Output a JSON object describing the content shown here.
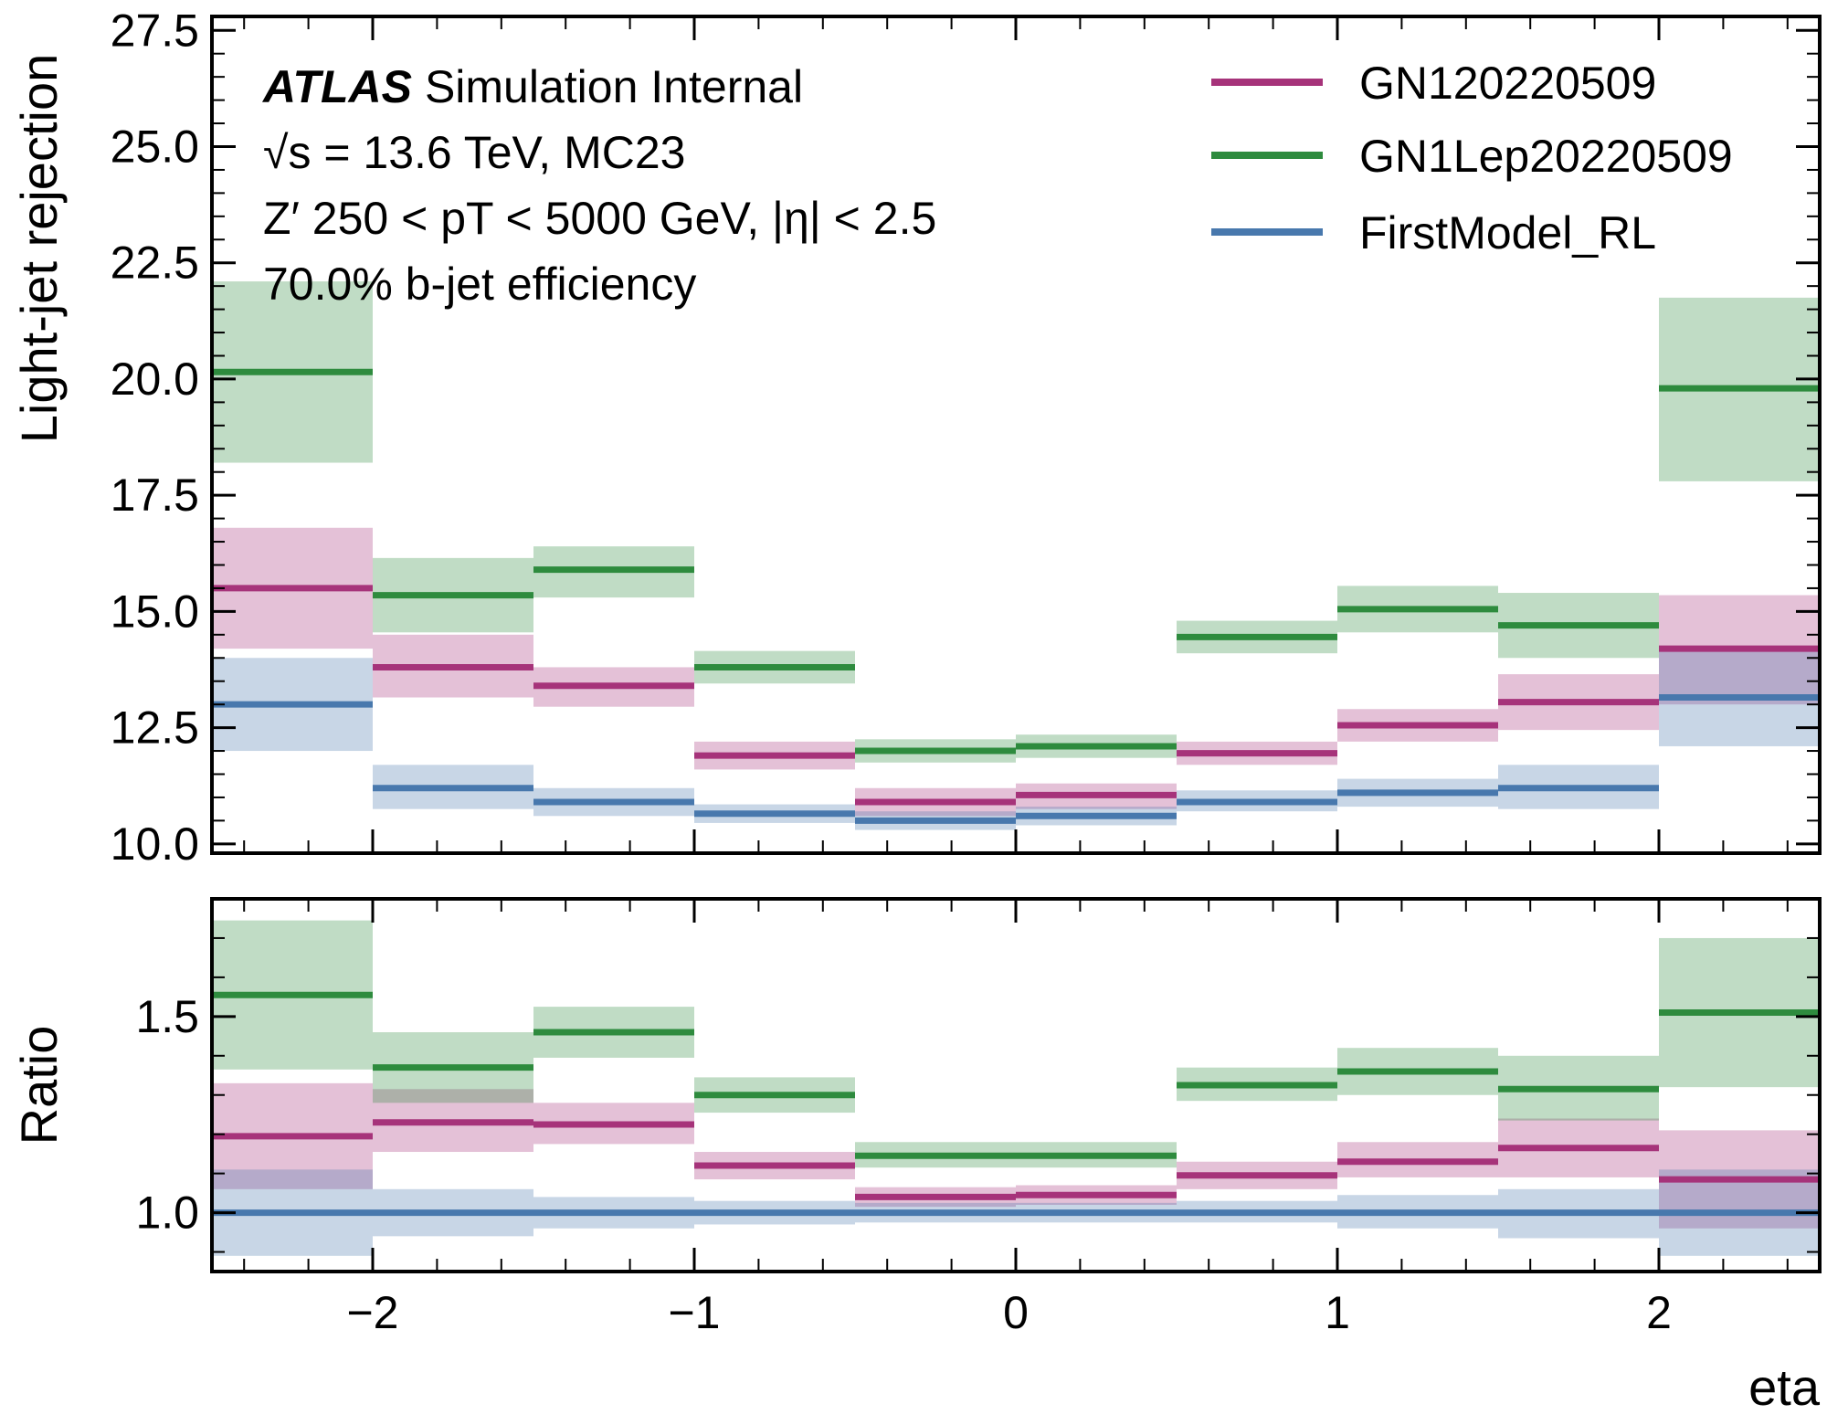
{
  "chart_data": [
    {
      "panel": "main",
      "type": "step-with-error-bands",
      "ylabel": "Light-jet rejection",
      "xlim": [
        -2.5,
        2.5
      ],
      "ylim": [
        9.8,
        27.8
      ],
      "yticks": [
        10.0,
        12.5,
        15.0,
        17.5,
        20.0,
        22.5,
        25.0,
        27.5
      ],
      "ytick_labels": [
        "10.0",
        "12.5",
        "15.0",
        "17.5",
        "20.0",
        "22.5",
        "25.0",
        "27.5"
      ],
      "bin_edges": [
        -2.5,
        -2.0,
        -1.5,
        -1.0,
        -0.5,
        0.0,
        0.5,
        1.0,
        1.5,
        2.0,
        2.5
      ],
      "annotations": {
        "experiment": "ATLAS",
        "status": "Simulation Internal",
        "energy": "√s = 13.6 TeV, MC23",
        "selection": "Z′ 250 < pT < 5000 GeV, |η| < 2.5",
        "working_point": "70.0% b-jet efficiency"
      },
      "legend_position": "top-right",
      "series": [
        {
          "name": "GN120220509",
          "color": "#a6337a",
          "band_color": "#e2b8cf",
          "values": [
            15.5,
            13.8,
            13.4,
            11.9,
            10.9,
            11.05,
            11.95,
            12.55,
            13.05,
            14.2
          ],
          "lower": [
            14.2,
            13.15,
            12.95,
            11.6,
            10.6,
            10.75,
            11.7,
            12.2,
            12.45,
            13.0
          ],
          "upper": [
            16.8,
            14.5,
            13.8,
            12.2,
            11.2,
            11.3,
            12.2,
            12.9,
            13.65,
            15.35
          ]
        },
        {
          "name": "GN1Lep20220509",
          "color": "#2e8b3e",
          "band_color": "#b8dbbd",
          "values": [
            20.15,
            15.35,
            15.9,
            13.8,
            12.0,
            12.1,
            14.45,
            15.05,
            14.7,
            19.8
          ],
          "lower": [
            18.2,
            14.55,
            15.3,
            13.45,
            11.75,
            11.85,
            14.1,
            14.55,
            14.0,
            17.8
          ],
          "upper": [
            22.1,
            16.15,
            16.4,
            14.15,
            12.25,
            12.35,
            14.8,
            15.55,
            15.4,
            21.75
          ]
        },
        {
          "name": "FirstModel_RL",
          "color": "#4878ad",
          "band_color": "#c2d1e5",
          "values": [
            13.0,
            11.2,
            10.9,
            10.65,
            10.5,
            10.6,
            10.9,
            11.1,
            11.2,
            13.15
          ],
          "lower": [
            12.0,
            10.75,
            10.6,
            10.45,
            10.3,
            10.4,
            10.7,
            10.8,
            10.75,
            12.1
          ],
          "upper": [
            14.0,
            11.7,
            11.2,
            10.85,
            10.7,
            10.8,
            11.15,
            11.4,
            11.7,
            14.2
          ]
        }
      ]
    },
    {
      "panel": "ratio",
      "type": "step-with-error-bands",
      "xlabel": "eta",
      "ylabel": "Ratio",
      "xlim": [
        -2.5,
        2.5
      ],
      "ylim": [
        0.85,
        1.8
      ],
      "xticks": [
        -2,
        -1,
        0,
        1,
        2
      ],
      "xtick_labels": [
        "−2",
        "−1",
        "0",
        "1",
        "2"
      ],
      "yticks": [
        1.0,
        1.5
      ],
      "ytick_labels": [
        "1.0",
        "1.5"
      ],
      "bin_edges": [
        -2.5,
        -2.0,
        -1.5,
        -1.0,
        -0.5,
        0.0,
        0.5,
        1.0,
        1.5,
        2.0,
        2.5
      ],
      "series": [
        {
          "name": "GN120220509",
          "color": "#a6337a",
          "band_color": "#e2b8cf",
          "values": [
            1.195,
            1.23,
            1.225,
            1.12,
            1.04,
            1.045,
            1.095,
            1.13,
            1.165,
            1.085
          ],
          "lower": [
            1.06,
            1.155,
            1.175,
            1.085,
            1.015,
            1.02,
            1.06,
            1.09,
            1.09,
            0.96
          ],
          "upper": [
            1.33,
            1.315,
            1.28,
            1.155,
            1.065,
            1.07,
            1.13,
            1.18,
            1.24,
            1.21
          ]
        },
        {
          "name": "GN1Lep20220509",
          "color": "#2e8b3e",
          "band_color": "#b8dbbd",
          "values": [
            1.555,
            1.37,
            1.46,
            1.3,
            1.145,
            1.145,
            1.325,
            1.36,
            1.315,
            1.51
          ],
          "lower": [
            1.365,
            1.28,
            1.395,
            1.255,
            1.115,
            1.115,
            1.285,
            1.3,
            1.235,
            1.32
          ],
          "upper": [
            1.745,
            1.46,
            1.525,
            1.345,
            1.18,
            1.18,
            1.37,
            1.42,
            1.4,
            1.7
          ]
        },
        {
          "name": "FirstModel_RL",
          "color": "#4878ad",
          "band_color": "#c2d1e5",
          "values": [
            1.0,
            1.0,
            1.0,
            1.0,
            1.0,
            1.0,
            1.0,
            1.0,
            1.0,
            1.0
          ],
          "lower": [
            0.89,
            0.94,
            0.96,
            0.97,
            0.975,
            0.975,
            0.975,
            0.96,
            0.935,
            0.89
          ],
          "upper": [
            1.11,
            1.06,
            1.04,
            1.03,
            1.025,
            1.025,
            1.03,
            1.045,
            1.06,
            1.11
          ]
        }
      ]
    }
  ]
}
